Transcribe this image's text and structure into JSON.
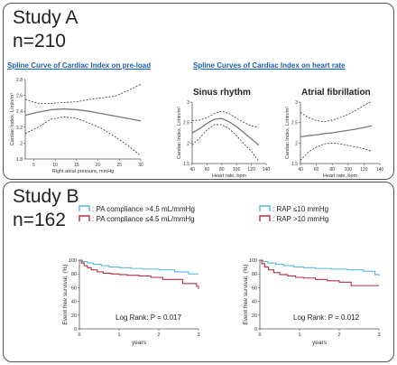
{
  "study_a": {
    "title": "Study A",
    "n": "n=210",
    "subtitle_preload": "Spline Curve of Cardiac Index on pre-load",
    "subtitle_hr": "Spline Curves of Cardiac Index on heart rate",
    "panel_sinus": "Sinus rhythm",
    "panel_af": "Atrial fibrillation"
  },
  "study_b": {
    "title": "Study B",
    "n": "n=162",
    "legend_left": [
      ": PA compliance >4.5 mL/mmHg",
      ": PA compliance ≤4.5 mL/mmHg"
    ],
    "legend_right": [
      ": RAP ≤10 mmHg",
      ": RAP >10 mmHg"
    ],
    "logrank_left": "Log Rank: P = 0.017",
    "logrank_right": "Log Rank: P = 0.012"
  },
  "colors": {
    "line": "#777777",
    "high": "#5bb7dd",
    "low": "#b03040"
  },
  "chart_data": [
    {
      "type": "line",
      "id": "pre-load",
      "xlabel": "Right atrial pressure, mmHg",
      "ylabel": "Cardiac Index, L/min/m²",
      "xlim": [
        3,
        30
      ],
      "ylim": [
        1.8,
        2.8
      ],
      "xticks": [
        5,
        10,
        15,
        20,
        25,
        30
      ],
      "yticks": [
        1.8,
        2.0,
        2.2,
        2.4,
        2.6,
        2.8
      ],
      "x": [
        3,
        6,
        9,
        12,
        15,
        18,
        21,
        24,
        27,
        30
      ],
      "series": [
        {
          "style": "solid",
          "values": [
            2.35,
            2.39,
            2.42,
            2.43,
            2.42,
            2.4,
            2.37,
            2.34,
            2.31,
            2.28
          ]
        },
        {
          "style": "dashed",
          "values": [
            2.55,
            2.5,
            2.5,
            2.51,
            2.52,
            2.55,
            2.57,
            2.59,
            2.66,
            2.74
          ]
        },
        {
          "style": "dashed",
          "values": [
            2.12,
            2.2,
            2.3,
            2.33,
            2.31,
            2.25,
            2.18,
            2.08,
            1.97,
            1.84
          ]
        }
      ]
    },
    {
      "type": "line",
      "id": "sinus",
      "xlabel": "Heart rate, bpm",
      "ylabel": "Cardiac Index, L/min/m²",
      "xlim": [
        40,
        140
      ],
      "ylim": [
        1.5,
        3.0
      ],
      "xticks": [
        40,
        60,
        80,
        100,
        120,
        140
      ],
      "yticks": [
        1.5,
        2.0,
        2.5,
        3.0
      ],
      "x": [
        40,
        50,
        60,
        70,
        80,
        90,
        100,
        110,
        120,
        130
      ],
      "series": [
        {
          "style": "solid",
          "values": [
            2.25,
            2.35,
            2.48,
            2.58,
            2.6,
            2.52,
            2.4,
            2.25,
            2.1,
            1.95
          ]
        },
        {
          "style": "dashed",
          "values": [
            2.55,
            2.56,
            2.62,
            2.72,
            2.78,
            2.72,
            2.6,
            2.5,
            2.42,
            2.38
          ]
        },
        {
          "style": "dashed",
          "values": [
            1.95,
            2.12,
            2.32,
            2.45,
            2.45,
            2.35,
            2.18,
            1.98,
            1.8,
            1.55
          ]
        }
      ]
    },
    {
      "type": "line",
      "id": "af",
      "xlabel": "Heart rate, bpm",
      "ylabel": "Cardiac Index, L/min/m²",
      "xlim": [
        40,
        140
      ],
      "ylim": [
        1.5,
        3.0
      ],
      "xticks": [
        40,
        60,
        80,
        100,
        120,
        140
      ],
      "yticks": [
        1.5,
        2.0,
        2.5,
        3.0
      ],
      "x": [
        40,
        50,
        60,
        70,
        80,
        90,
        100,
        110,
        120,
        130
      ],
      "series": [
        {
          "style": "solid",
          "values": [
            2.15,
            2.18,
            2.2,
            2.23,
            2.25,
            2.28,
            2.31,
            2.34,
            2.38,
            2.42
          ]
        },
        {
          "style": "dashed",
          "values": [
            2.75,
            2.62,
            2.55,
            2.52,
            2.56,
            2.62,
            2.7,
            2.8,
            2.92,
            3.02
          ]
        },
        {
          "style": "dashed",
          "values": [
            1.58,
            1.78,
            1.9,
            1.98,
            2.0,
            1.98,
            1.94,
            1.9,
            1.86,
            1.8
          ]
        }
      ]
    },
    {
      "type": "step",
      "id": "km-pac",
      "ylabel": "Event free survival, (%)",
      "xlabel": "years",
      "xlim": [
        0,
        3
      ],
      "ylim": [
        0,
        100
      ],
      "xticks": [
        0,
        1,
        2,
        3
      ],
      "yticks": [
        0,
        20,
        40,
        60,
        80,
        100
      ],
      "series": [
        {
          "name": ": PA compliance >4.5 mL/mmHg",
          "color": "#5bb7dd",
          "x": [
            0,
            0.08,
            0.2,
            0.35,
            0.55,
            0.75,
            1.0,
            1.3,
            1.6,
            2.0,
            2.4,
            2.75,
            3.0
          ],
          "values": [
            100,
            98,
            96,
            94,
            92,
            90,
            89,
            88,
            87,
            86,
            83,
            80,
            80
          ]
        },
        {
          "name": ": PA compliance ≤4.5 mL/mmHg",
          "color": "#b03040",
          "x": [
            0,
            0.05,
            0.12,
            0.2,
            0.3,
            0.45,
            0.6,
            0.8,
            1.0,
            1.2,
            1.5,
            1.8,
            2.1,
            2.6,
            2.95,
            3.0
          ],
          "values": [
            100,
            96,
            92,
            89,
            86,
            83,
            81,
            80,
            79,
            78,
            77,
            75,
            72,
            66,
            62,
            58
          ]
        }
      ]
    },
    {
      "type": "step",
      "id": "km-rap",
      "ylabel": "Event free survival, (%)",
      "xlabel": "years",
      "xlim": [
        0,
        3
      ],
      "ylim": [
        0,
        100
      ],
      "xticks": [
        0,
        1,
        2,
        3
      ],
      "yticks": [
        0,
        20,
        40,
        60,
        80,
        100
      ],
      "series": [
        {
          "name": ": RAP ≤10 mmHg",
          "color": "#5bb7dd",
          "x": [
            0,
            0.08,
            0.2,
            0.4,
            0.6,
            0.85,
            1.1,
            1.4,
            1.8,
            2.2,
            2.6,
            2.9,
            3.0
          ],
          "values": [
            100,
            98,
            96,
            94,
            92,
            90,
            89,
            88,
            87,
            86,
            84,
            79,
            77
          ]
        },
        {
          "name": ": RAP >10 mmHg",
          "color": "#b03040",
          "x": [
            0,
            0.05,
            0.12,
            0.22,
            0.35,
            0.5,
            0.7,
            0.9,
            1.1,
            1.4,
            1.7,
            2.0,
            2.3,
            3.0
          ],
          "values": [
            100,
            95,
            90,
            86,
            82,
            79,
            77,
            75,
            74,
            72,
            70,
            68,
            63,
            63
          ]
        }
      ]
    }
  ]
}
